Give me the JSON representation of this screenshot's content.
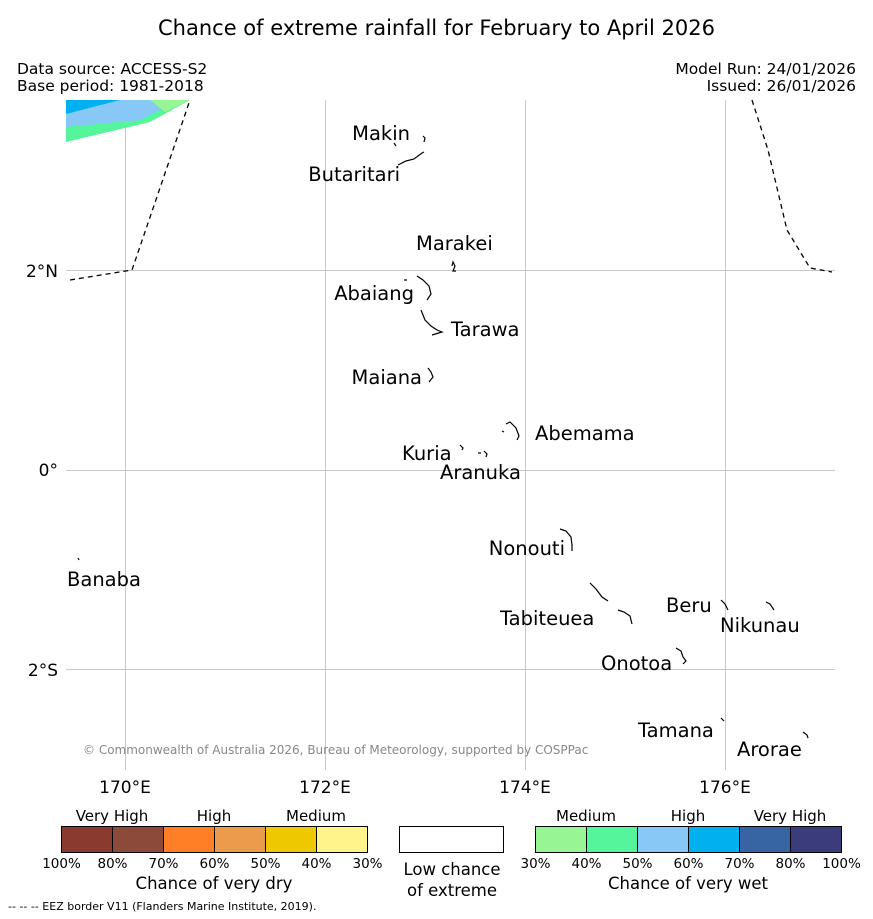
{
  "title": "Chance of extreme rainfall for February to April 2026",
  "header": {
    "data_source": "Data source: ACCESS-S2",
    "base_period": "Base period: 1981-2018",
    "model_run": "Model Run: 24/01/2026",
    "issued": "Issued: 26/01/2026"
  },
  "map": {
    "lat_labels": [
      "2°N",
      "0°",
      "2°S"
    ],
    "lon_labels": [
      "170°E",
      "172°E",
      "174°E",
      "176°E"
    ],
    "islands": [
      {
        "name": "Makin",
        "lon": 173.0,
        "lat": 3.37
      },
      {
        "name": "Butaritari",
        "lon": 172.9,
        "lat": 3.16
      },
      {
        "name": "Marakei",
        "lon": 173.3,
        "lat": 2.0
      },
      {
        "name": "Abaiang",
        "lon": 173.0,
        "lat": 1.83
      },
      {
        "name": "Tarawa",
        "lon": 173.1,
        "lat": 1.42
      },
      {
        "name": "Maiana",
        "lon": 173.0,
        "lat": 0.93
      },
      {
        "name": "Abemama",
        "lon": 173.85,
        "lat": 0.4
      },
      {
        "name": "Kuria",
        "lon": 173.4,
        "lat": 0.22
      },
      {
        "name": "Aranuka",
        "lon": 173.6,
        "lat": 0.16
      },
      {
        "name": "Nonouti",
        "lon": 174.4,
        "lat": -0.7
      },
      {
        "name": "Banaba",
        "lon": 169.53,
        "lat": -0.86
      },
      {
        "name": "Tabiteuea",
        "lon": 174.8,
        "lat": -1.3
      },
      {
        "name": "Beru",
        "lon": 176.0,
        "lat": -1.33
      },
      {
        "name": "Nikunau",
        "lon": 176.45,
        "lat": -1.37
      },
      {
        "name": "Onotoa",
        "lon": 175.55,
        "lat": -1.85
      },
      {
        "name": "Tamana",
        "lon": 176.0,
        "lat": -2.5
      },
      {
        "name": "Arorae",
        "lon": 176.82,
        "lat": -2.64
      }
    ],
    "copyright": "© Commonwealth of Australia 2026, Bureau of Meteorology, supported by COSPPac"
  },
  "dry_legend": {
    "categories": [
      "Very High",
      "High",
      "Medium"
    ],
    "colors": [
      "#8b3a2f",
      "#8b4a3a",
      "#ff7f27",
      "#ec9a4b",
      "#eec800",
      "#fdf58b"
    ],
    "ticks": [
      "100%",
      "80%",
      "70%",
      "60%",
      "50%",
      "40%",
      "30%"
    ],
    "title": "Chance of very dry"
  },
  "low_legend": {
    "line1": "Low chance",
    "line2": "of extreme",
    "color": "#ffffff"
  },
  "wet_legend": {
    "categories": [
      "Medium",
      "High",
      "Very High"
    ],
    "colors": [
      "#98f593",
      "#55f59c",
      "#87c8f7",
      "#00b0ef",
      "#3764a3",
      "#3a3c7c"
    ],
    "ticks": [
      "30%",
      "40%",
      "50%",
      "60%",
      "70%",
      "80%",
      "100%"
    ],
    "title": "Chance of very wet"
  },
  "footer": "--  --  -- EEZ border V11 (Flanders Marine Institute, 2019)."
}
